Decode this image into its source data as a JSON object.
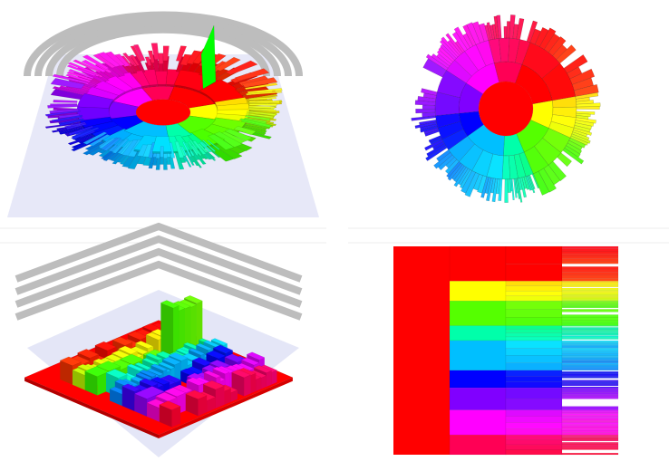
{
  "chart_data": [
    {
      "type": "sunburst-3d",
      "panel": "top-left",
      "hierarchy_source": "shared",
      "levels": 4,
      "view": "perspective-3d",
      "floor_color": "#e4e6f7",
      "wall_color": "#bdbdbd"
    },
    {
      "type": "sunburst",
      "panel": "top-right",
      "hierarchy_source": "shared",
      "levels": 4,
      "view": "top-down"
    },
    {
      "type": "treemap-3d",
      "panel": "bottom-left",
      "hierarchy_source": "shared",
      "levels": 4,
      "view": "perspective-3d",
      "floor_color": "#e4e6f7",
      "wall_color": "#bdbdbd"
    },
    {
      "type": "icicle",
      "panel": "bottom-right",
      "hierarchy_source": "shared",
      "levels": 4,
      "view": "flat"
    }
  ],
  "hierarchy": {
    "root": {
      "name": "",
      "color": "#ff0000"
    },
    "level1": [
      {
        "hue": 0,
        "value": 14,
        "color": "#ff0000"
      },
      {
        "hue": 60,
        "value": 8,
        "color": "#ffff00"
      },
      {
        "hue": 100,
        "value": 10,
        "color": "#66ff00"
      },
      {
        "hue": 160,
        "value": 6,
        "color": "#00ff99"
      },
      {
        "hue": 195,
        "value": 12,
        "color": "#00ccff"
      },
      {
        "hue": 240,
        "value": 7,
        "color": "#2200ff"
      },
      {
        "hue": 270,
        "value": 9,
        "color": "#8800ff"
      },
      {
        "hue": 300,
        "value": 10,
        "color": "#ff00ff"
      },
      {
        "hue": 340,
        "value": 8,
        "color": "#ff0066"
      }
    ]
  }
}
